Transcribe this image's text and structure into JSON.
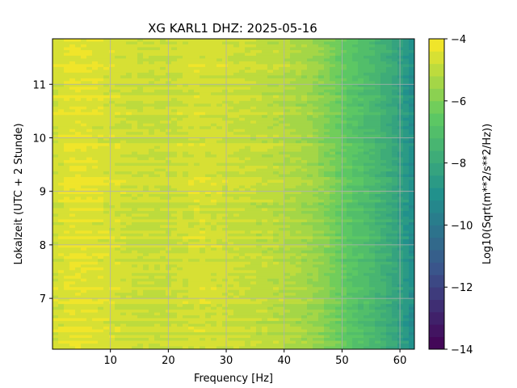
{
  "chart_data": {
    "type": "heatmap",
    "title": "XG KARL1  DHZ: 2025-05-16",
    "xlabel": "Frequency [Hz]",
    "ylabel": "Lokalzeit (UTC + 2 Stunde)",
    "xlim": [
      0,
      62.5
    ],
    "ylim": [
      11.85,
      6.05
    ],
    "x_ticks": [
      10,
      20,
      30,
      40,
      50,
      60
    ],
    "y_ticks": [
      7,
      8,
      9,
      10,
      11
    ],
    "grid": true,
    "colorbar": {
      "label": "Log10(Sqrt(m**2/s**2/Hz))",
      "range": [
        -14,
        -4
      ],
      "ticks": [
        -4,
        -6,
        -8,
        -10,
        -12,
        -14
      ],
      "levels": 25,
      "colormap": "viridis"
    },
    "profile": {
      "frequency_hz": [
        0,
        3,
        5,
        10,
        15,
        20,
        25,
        30,
        35,
        40,
        45,
        48,
        50,
        52,
        55,
        58,
        60,
        62.5
      ],
      "log10_amplitude": [
        -4.7,
        -4.4,
        -4.4,
        -4.6,
        -4.8,
        -4.8,
        -4.6,
        -4.7,
        -4.9,
        -5.1,
        -5.5,
        -6.0,
        -6.4,
        -6.8,
        -7.2,
        -7.8,
        -8.3,
        -9.2
      ]
    }
  }
}
